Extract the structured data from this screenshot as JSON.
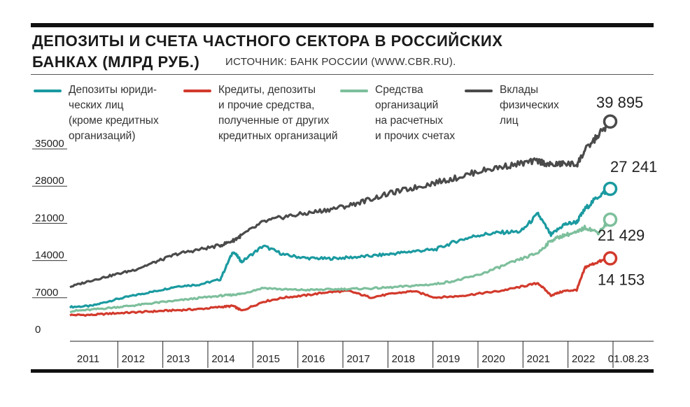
{
  "header": {
    "title_line1": "ДЕПОЗИТЫ И СЧЕТА ЧАСТНОГО СЕКТОРА В РОССИЙСКИХ",
    "title_line2": "БАНКАХ (МЛРД РУБ.)",
    "source": "ИСТОЧНИК: БАНК РОССИИ (WWW.CBR.RU)."
  },
  "legend": [
    {
      "text": "Депозиты юриди-\nческих лиц\n(кроме кредитных\nорганизаций)",
      "color": "#1a9aa0"
    },
    {
      "text": "Кредиты, депозиты\nи прочие средства,\nполученные от других\nкредитных организаций",
      "color": "#d23a2c"
    },
    {
      "text": "Средства\nорганизаций\nна расчетных\nи прочих счетах",
      "color": "#7dbf9c"
    },
    {
      "text": "Вклады\nфизических\nлиц",
      "color": "#4a4a4a"
    }
  ],
  "chart_data": {
    "type": "line",
    "title": "ДЕПОЗИТЫ И СЧЕТА ЧАСТНОГО СЕКТОРА В РОССИЙСКИХ БАНКАХ (МЛРД РУБ.)",
    "ylim": [
      0,
      35000
    ],
    "y_ticks": [
      "0",
      "7000",
      "14000",
      "21000",
      "28000",
      "35000"
    ],
    "x_tick_labels": [
      "2011",
      "2012",
      "2013",
      "2014",
      "2015",
      "2016",
      "2017",
      "2018",
      "2019",
      "2020",
      "2021",
      "2022",
      "01.08.23"
    ],
    "x_positions": [
      2011.0,
      2011.5,
      2012.0,
      2012.5,
      2013.0,
      2013.5,
      2014.0,
      2014.5,
      2014.8,
      2015.0,
      2015.5,
      2016.0,
      2016.5,
      2017.0,
      2017.5,
      2018.0,
      2018.5,
      2019.0,
      2019.5,
      2020.0,
      2020.5,
      2021.0,
      2021.5,
      2021.9,
      2022.2,
      2022.5,
      2022.8,
      2023.0,
      2023.3,
      2023.58
    ],
    "series": [
      {
        "name": "Депозиты юридических лиц (кроме кредитных организаций)",
        "color": "#1a9aa0",
        "end_label": "27 241",
        "values": [
          5000,
          5200,
          6300,
          7200,
          8000,
          8900,
          9200,
          10200,
          15500,
          13500,
          16500,
          14800,
          14200,
          14100,
          14300,
          14600,
          15000,
          15500,
          15800,
          17400,
          18500,
          19000,
          19200,
          22500,
          18500,
          20500,
          21000,
          23500,
          25800,
          27241
        ]
      },
      {
        "name": "Кредиты, депозиты и прочие средства, полученные от других кредитных организаций",
        "color": "#d23a2c",
        "end_label": "14 153",
        "values": [
          3500,
          3500,
          3800,
          4000,
          4200,
          4400,
          4600,
          5000,
          5200,
          4300,
          6000,
          6800,
          7200,
          7800,
          8000,
          6800,
          7500,
          8000,
          6800,
          7000,
          7500,
          8000,
          8800,
          9500,
          7200,
          8000,
          8200,
          12500,
          13500,
          14153
        ]
      },
      {
        "name": "Средства организаций на расчетных и прочих счетах",
        "color": "#7dbf9c",
        "end_label": "21 429",
        "values": [
          4200,
          4500,
          4900,
          5300,
          5800,
          6200,
          6700,
          7100,
          7300,
          7500,
          8600,
          8300,
          8200,
          8300,
          8400,
          8500,
          8700,
          9000,
          9300,
          10000,
          11000,
          12500,
          14000,
          15200,
          17500,
          18500,
          19000,
          20000,
          19000,
          21429
        ]
      },
      {
        "name": "Вклады физических лиц",
        "color": "#4a4a4a",
        "end_label": "39 895",
        "values": [
          8800,
          10000,
          11000,
          12000,
          13500,
          15000,
          15800,
          16600,
          17500,
          18500,
          21000,
          22000,
          22600,
          23300,
          24100,
          25300,
          26500,
          27400,
          28400,
          29300,
          30500,
          31300,
          32000,
          32500,
          31700,
          32000,
          31800,
          34500,
          37300,
          39895
        ]
      }
    ]
  }
}
